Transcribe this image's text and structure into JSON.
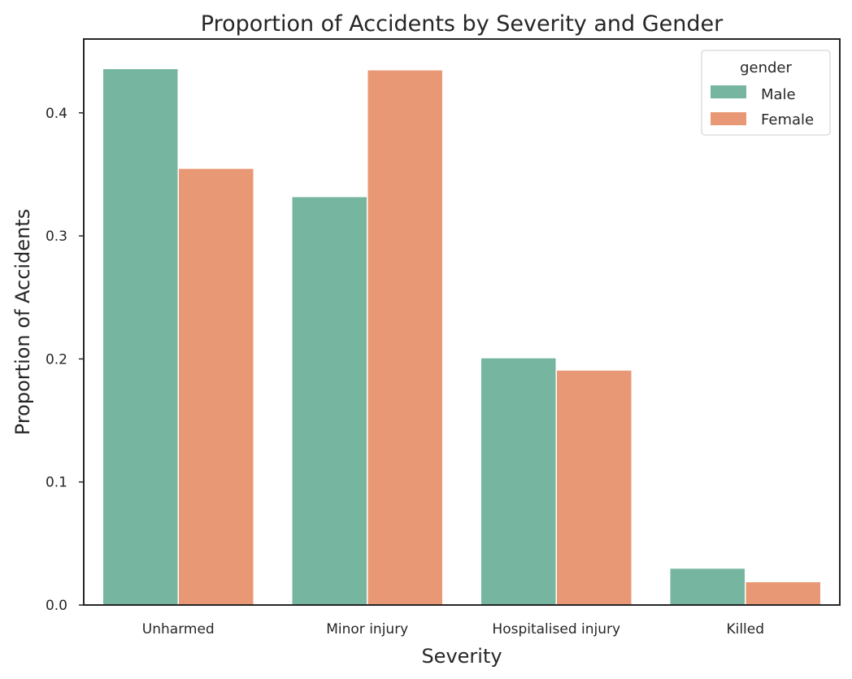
{
  "chart_data": {
    "type": "bar",
    "title": "Proportion of Accidents by Severity and Gender",
    "xlabel": "Severity",
    "ylabel": "Proportion of Accidents",
    "categories": [
      "Unharmed",
      "Minor injury",
      "Hospitalised injury",
      "Killed"
    ],
    "series": [
      {
        "name": "Male",
        "values": [
          0.436,
          0.332,
          0.201,
          0.03
        ]
      },
      {
        "name": "Female",
        "values": [
          0.355,
          0.435,
          0.191,
          0.019
        ]
      }
    ],
    "ylim": [
      0,
      0.46
    ],
    "yticks": [
      "0.0",
      "0.1",
      "0.2",
      "0.3",
      "0.4"
    ],
    "legend": {
      "title": "gender",
      "placement": "top-right"
    },
    "grid": false,
    "colors": {
      "Male": "#76b6a0",
      "Female": "#e99875"
    }
  }
}
